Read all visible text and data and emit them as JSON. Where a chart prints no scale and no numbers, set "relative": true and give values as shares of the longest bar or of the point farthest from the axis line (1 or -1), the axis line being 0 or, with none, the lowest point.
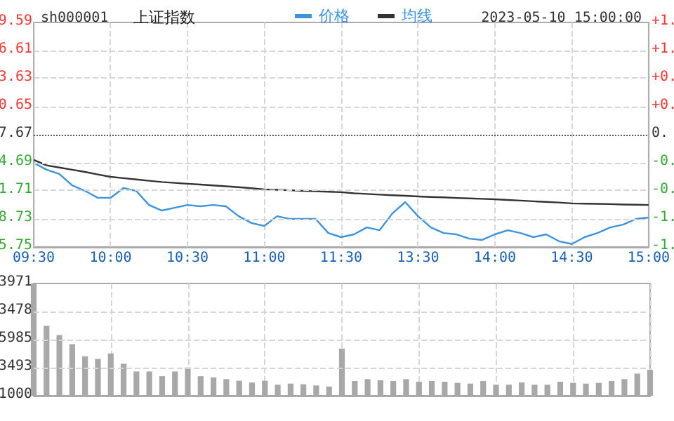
{
  "chart_data": [
    {
      "type": "line",
      "title": "上证指数",
      "subtitle": "sh000001",
      "relative": true,
      "annotations": [
        "2023-05-10 15:00:00",
        "9.59",
        "6.61",
        "3.63",
        "0.65",
        "7.67",
        "4.69",
        "1.71",
        "8.73",
        "5.75",
        "+1.",
        "+1.",
        "+0.",
        "+0.",
        "0.",
        "-0.",
        "-0.",
        "-1.",
        "-1."
      ],
      "categories": [
        "09:30",
        null,
        null,
        null,
        null,
        null,
        "10:00",
        null,
        null,
        null,
        null,
        null,
        "10:30",
        null,
        null,
        null,
        null,
        null,
        "11:00",
        null,
        null,
        null,
        null,
        null,
        "11:30",
        null,
        null,
        null,
        null,
        null,
        "13:30",
        null,
        null,
        null,
        null,
        null,
        "14:00",
        null,
        null,
        null,
        null,
        null,
        "14:30",
        null,
        null,
        null,
        null,
        null,
        "15:00"
      ],
      "series": [
        {
          "name": "价格",
          "color": "#3d94dc",
          "values": [
            0.968,
            0.888,
            0.839,
            0.709,
            0.645,
            0.565,
            0.565,
            0.677,
            0.645,
            0.483,
            0.419,
            0.451,
            0.483,
            0.468,
            0.483,
            0.468,
            0.354,
            0.275,
            0.242,
            0.354,
            0.322,
            0.322,
            0.322,
            0.16,
            0.113,
            0.145,
            0.225,
            0.193,
            0.386,
            0.516,
            0.354,
            0.225,
            0.16,
            0.145,
            0.096,
            0.081,
            0.145,
            0.193,
            0.16,
            0.113,
            0.145,
            0.066,
            0.034,
            0.113,
            0.16,
            0.225,
            0.257,
            0.322,
            0.339
          ]
        },
        {
          "name": "均线",
          "color": "#333333",
          "values": [
            1,
            0.938,
            0.913,
            0.888,
            0.863,
            0.834,
            0.806,
            0.791,
            0.776,
            0.761,
            0.747,
            0.737,
            0.727,
            0.717,
            0.707,
            0.697,
            0.687,
            0.675,
            0.662,
            0.657,
            0.652,
            0.645,
            0.64,
            0.635,
            0.63,
            0.617,
            0.61,
            0.602,
            0.595,
            0.588,
            0.58,
            0.575,
            0.57,
            0.563,
            0.558,
            0.553,
            0.548,
            0.54,
            0.533,
            0.525,
            0.518,
            0.511,
            0.501,
            0.498,
            0.496,
            0.493,
            0.488,
            0.486,
            0.483
          ]
        }
      ],
      "ref_lines": [
        {
          "axis": "y",
          "value": 1.29,
          "color": "#555555",
          "line_style": "dotted"
        }
      ],
      "tick_labels": "x",
      "grid": true,
      "legend": "top",
      "marker": "none"
    },
    {
      "type": "bar",
      "relative": true,
      "annotations": [
        "3971",
        "3478",
        "5985",
        "3493",
        "1000"
      ],
      "categories": [
        null,
        null,
        null,
        null,
        null,
        null,
        null,
        null,
        null,
        null,
        null,
        null,
        null,
        null,
        null,
        null,
        null,
        null,
        null,
        null,
        null,
        null,
        null,
        null,
        null,
        null,
        null,
        null,
        null,
        null,
        null,
        null,
        null,
        null,
        null,
        null,
        null,
        null,
        null,
        null,
        null,
        null,
        null,
        null,
        null,
        null,
        null,
        null,
        null
      ],
      "series": [
        {
          "color": "#a8a8a8",
          "values": [
            1,
            0.623,
            0.541,
            0.459,
            0.351,
            0.328,
            0.377,
            0.285,
            0.216,
            0.216,
            0.174,
            0.216,
            0.252,
            0.174,
            0.164,
            0.148,
            0.134,
            0.118,
            0.134,
            0.098,
            0.108,
            0.102,
            0.092,
            0.082,
            0.42,
            0.131,
            0.148,
            0.138,
            0.131,
            0.148,
            0.125,
            0.131,
            0.125,
            0.115,
            0.108,
            0.131,
            0.098,
            0.098,
            0.118,
            0.098,
            0.098,
            0.125,
            0.115,
            0.108,
            0.115,
            0.131,
            0.148,
            0.197,
            0.23
          ]
        }
      ],
      "tick_labels": false,
      "grid": true
    }
  ]
}
